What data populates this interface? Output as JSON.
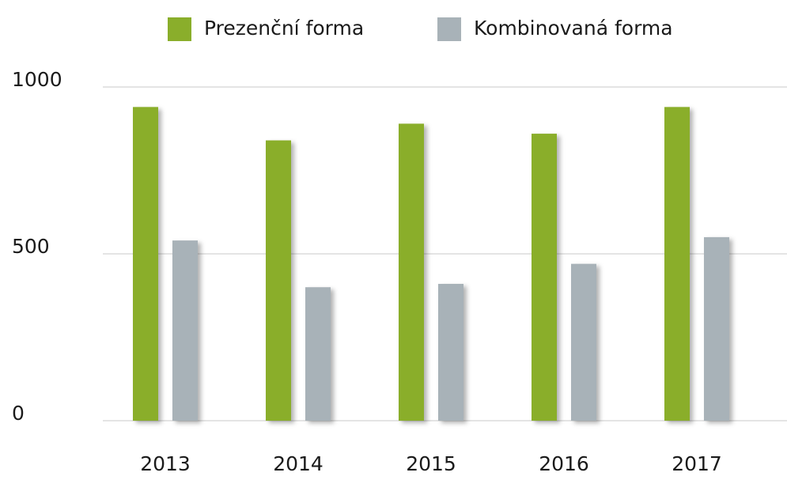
{
  "chart_data": {
    "type": "bar",
    "categories": [
      "2013",
      "2014",
      "2015",
      "2016",
      "2017"
    ],
    "series": [
      {
        "name": "Prezenční forma",
        "color": "#8aae2b",
        "values": [
          940,
          840,
          890,
          860,
          940
        ]
      },
      {
        "name": "Kombinovaná forma",
        "color": "#a8b2b8",
        "values": [
          540,
          400,
          410,
          470,
          550
        ]
      }
    ],
    "ylim": [
      0,
      1000
    ],
    "yticks": [
      0,
      500,
      1000
    ],
    "grid": true,
    "legend": "top"
  }
}
